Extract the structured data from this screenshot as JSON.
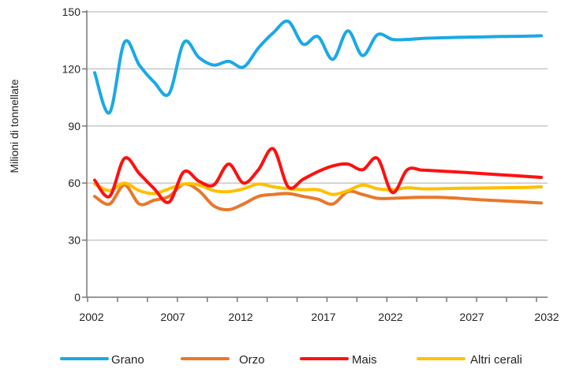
{
  "chart_data": {
    "type": "line",
    "title": "",
    "xlabel": "",
    "ylabel": "Milioni di tonnellate",
    "xlim": [
      2002,
      2032
    ],
    "ylim": [
      0,
      150
    ],
    "grid": "horizontal",
    "legend_position": "bottom",
    "x_tick_labels": [
      "2002",
      "2007",
      "2012",
      "2017",
      "2022",
      "2027",
      "2032"
    ],
    "y_tick_labels": [
      "0",
      "30",
      "60",
      "90",
      "120",
      "150"
    ],
    "x": [
      2002,
      2003,
      2004,
      2005,
      2006,
      2007,
      2008,
      2009,
      2010,
      2011,
      2012,
      2013,
      2014,
      2015,
      2016,
      2017,
      2018,
      2019,
      2020,
      2021,
      2022,
      2023,
      2024,
      2025,
      2026,
      2027,
      2028,
      2029,
      2030,
      2031,
      2032
    ],
    "series": [
      {
        "name": "Grano",
        "color": "#1aa9e6",
        "values": [
          118,
          97,
          134,
          122,
          113,
          107,
          134,
          126,
          122,
          124,
          121,
          131,
          139,
          145,
          133,
          137,
          125,
          140,
          127,
          138,
          135.5,
          135.5,
          136,
          136.3,
          136.5,
          136.7,
          136.8,
          137,
          137.1,
          137.2,
          137.4
        ]
      },
      {
        "name": "Orzo",
        "color": "#e8782a",
        "values": [
          53,
          49,
          59,
          49,
          51,
          53,
          59.5,
          56,
          48,
          46,
          49,
          53,
          54,
          54.5,
          53,
          51.5,
          49,
          55.5,
          54,
          52,
          52,
          52.3,
          52.5,
          52.5,
          52.2,
          51.7,
          51.2,
          50.8,
          50.4,
          50,
          49.5
        ]
      },
      {
        "name": "Mais",
        "color": "#ff1010",
        "values": [
          61.5,
          53,
          73,
          65,
          57,
          50,
          66,
          61,
          59,
          70,
          60,
          67,
          78,
          58,
          62,
          66,
          69,
          70,
          67,
          73,
          55,
          67,
          66.8,
          66.4,
          66,
          65.5,
          65,
          64.5,
          64,
          63.5,
          63
        ]
      },
      {
        "name": "Altri cerali",
        "color": "#ffc000",
        "values": [
          59.5,
          56,
          60,
          56,
          54.5,
          57,
          59.5,
          59,
          56,
          55.5,
          57,
          59.5,
          58,
          57,
          56.5,
          56.5,
          54,
          56,
          59,
          57,
          56.5,
          57.5,
          57,
          57,
          57.2,
          57.3,
          57.4,
          57.5,
          57.6,
          57.7,
          58
        ]
      }
    ]
  }
}
